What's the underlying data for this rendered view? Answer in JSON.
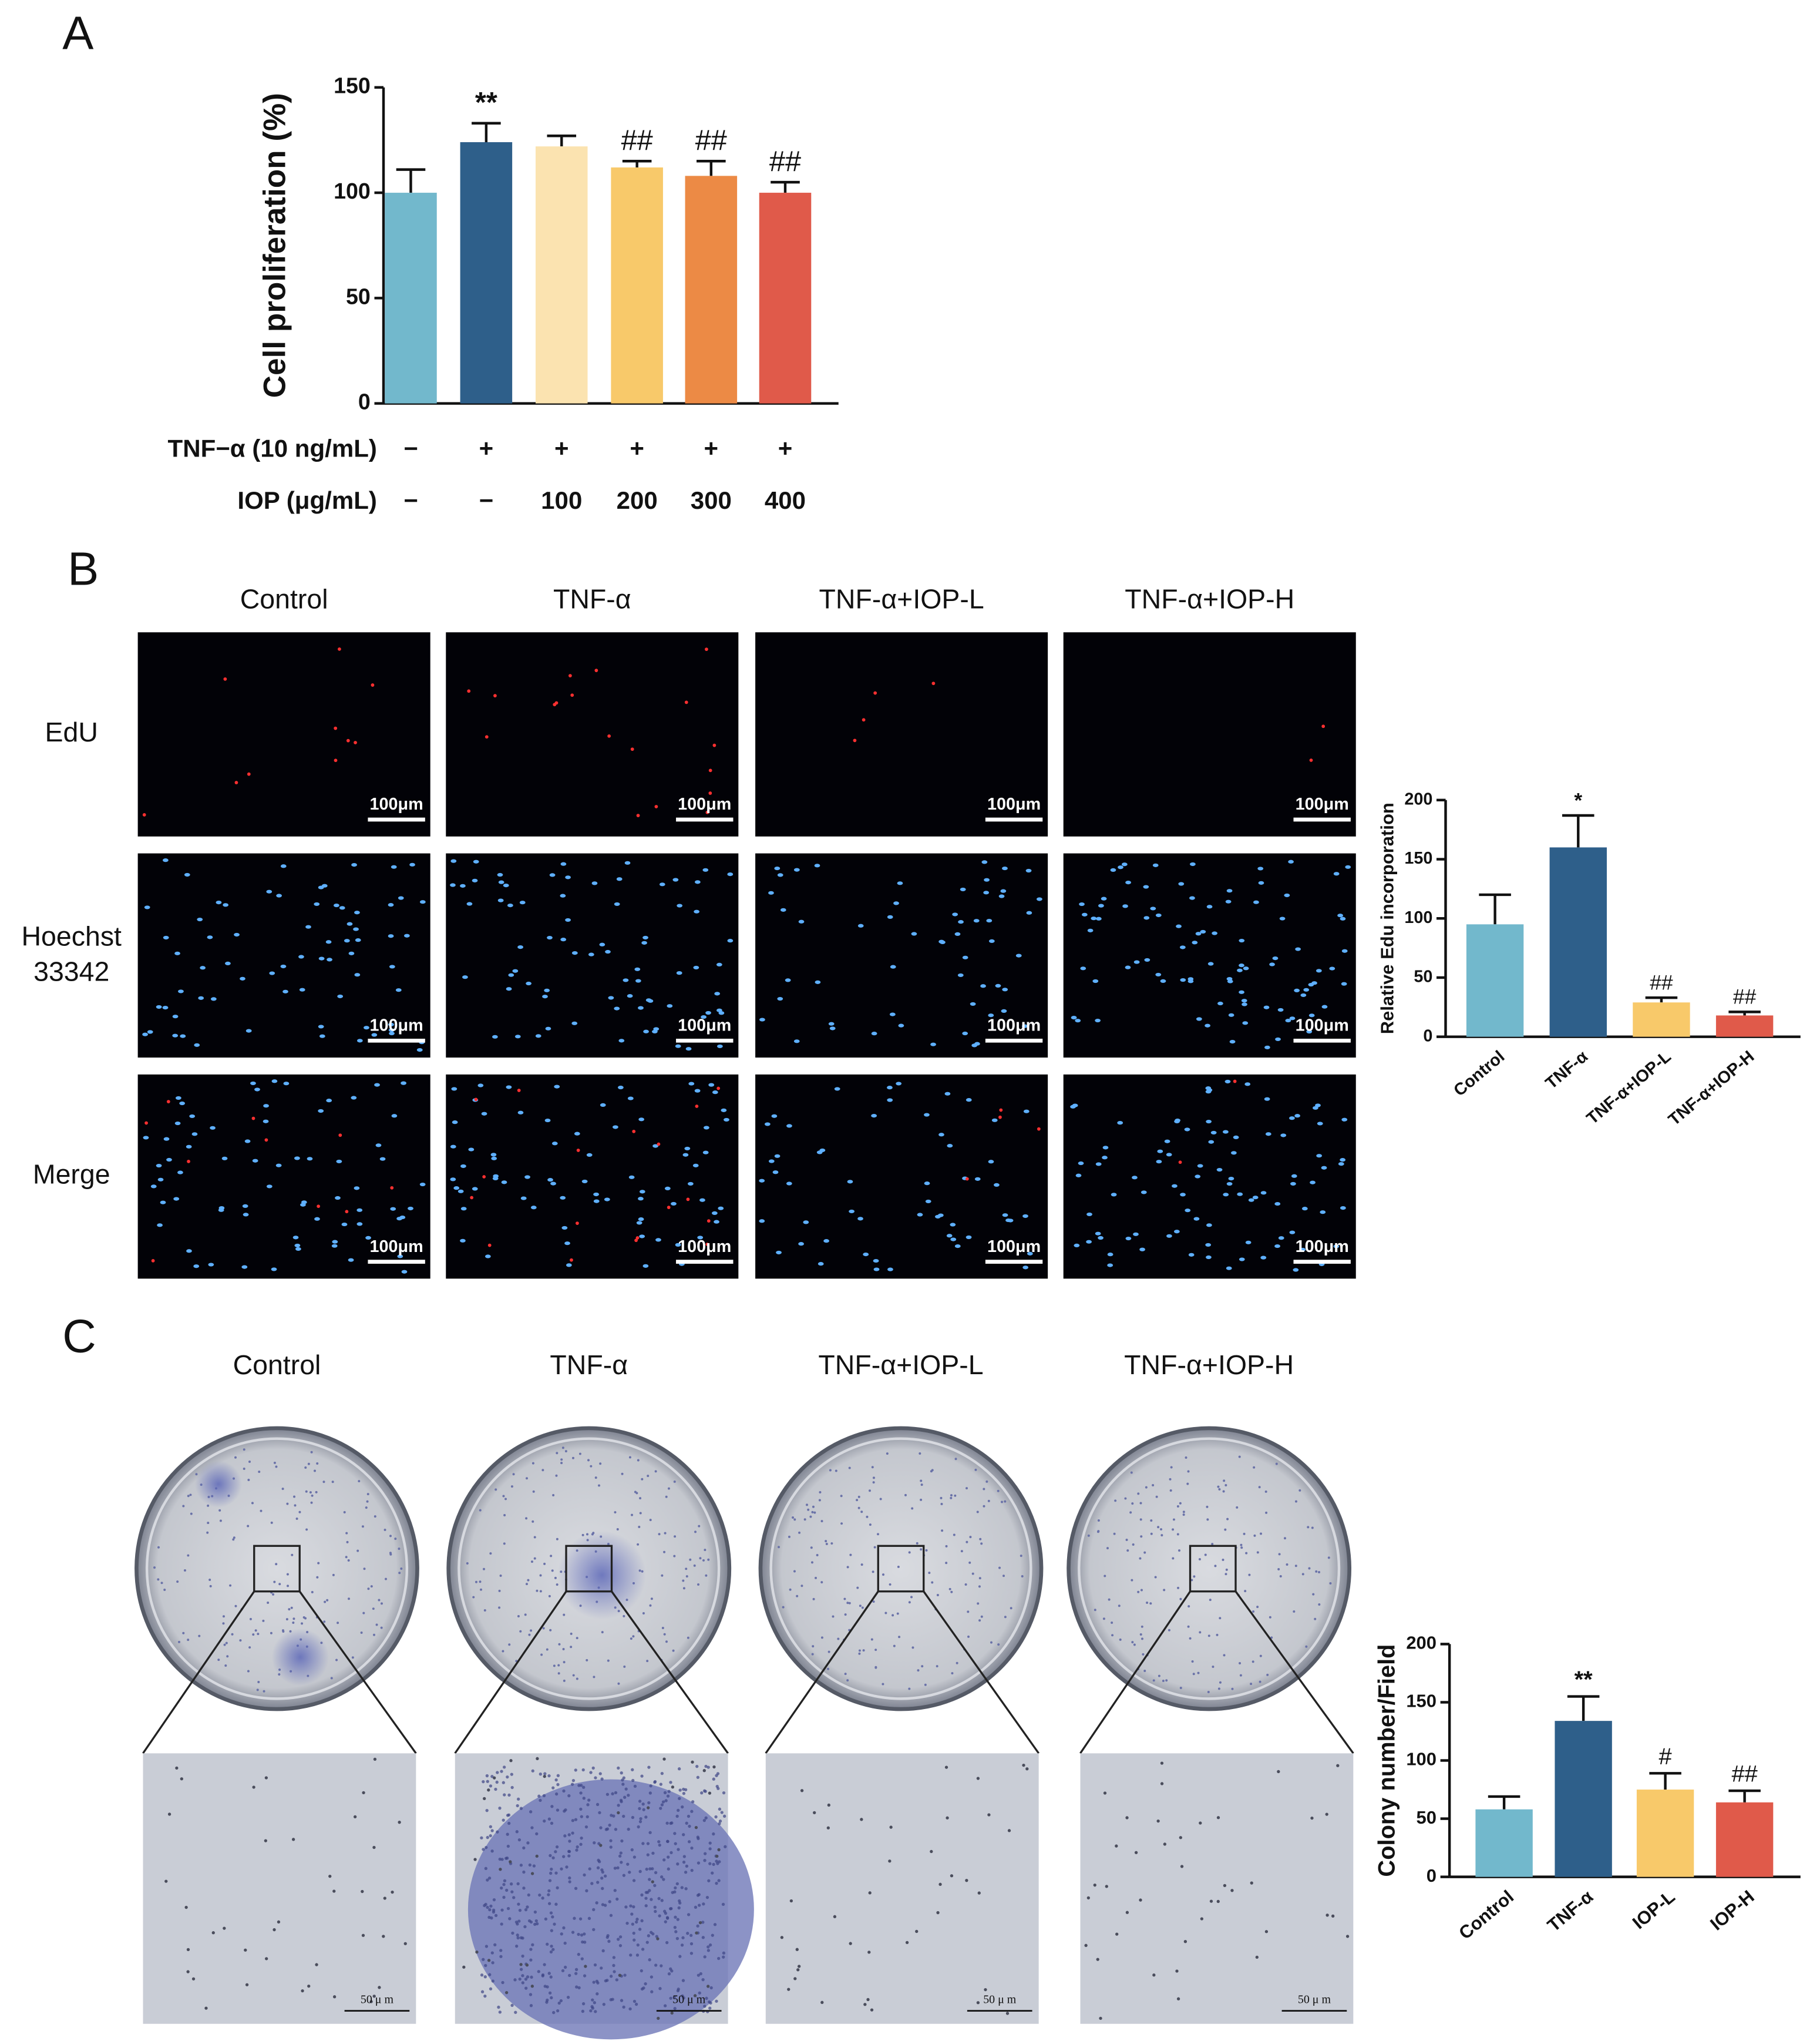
{
  "panel_labels": [
    "A",
    "B",
    "C"
  ],
  "chart_data": [
    {
      "type": "bar",
      "ylabel": "Cell proliferation (%)",
      "values": [
        100,
        124,
        122,
        112,
        108,
        100
      ],
      "errors": [
        11,
        9,
        5,
        3,
        7,
        5
      ],
      "annotations": [
        null,
        "**",
        null,
        "##",
        "##",
        "##"
      ],
      "colors": [
        "#72b8cc",
        "#2e5f8a",
        "#fbe3b0",
        "#f8c96a",
        "#ec8a45",
        "#e05a4a"
      ],
      "ylim": [
        0,
        150
      ],
      "yticks": [
        0,
        50,
        100,
        150
      ],
      "condition_rows": [
        {
          "label": "TNF−α (10 ng/mL)",
          "values": [
            "−",
            "+",
            "+",
            "+",
            "+",
            "+"
          ]
        },
        {
          "label": "IOP (μg/mL)",
          "values": [
            "−",
            "−",
            "100",
            "200",
            "300",
            "400"
          ]
        }
      ]
    },
    {
      "type": "bar",
      "ylabel": "Relative Edu incorporation",
      "categories": [
        "Control",
        "TNF-α",
        "TNF-α+IOP-L",
        "TNF-α+IOP-H"
      ],
      "values": [
        95,
        160,
        29,
        18
      ],
      "errors": [
        25,
        27,
        4,
        3
      ],
      "annotations": [
        null,
        "*",
        "##",
        "##"
      ],
      "colors": [
        "#72b8cc",
        "#2e5f8a",
        "#f8c96a",
        "#e05a4a"
      ],
      "ylim": [
        0,
        200
      ],
      "yticks": [
        0,
        50,
        100,
        150,
        200
      ]
    },
    {
      "type": "bar",
      "ylabel": "Colony number/Field",
      "categories": [
        "Control",
        "TNF-α",
        "IOP-L",
        "IOP-H"
      ],
      "values": [
        58,
        134,
        75,
        64
      ],
      "errors": [
        11,
        21,
        14,
        10
      ],
      "annotations": [
        null,
        "**",
        "#",
        "##"
      ],
      "colors": [
        "#72b8cc",
        "#2e5f8a",
        "#f8c96a",
        "#e05a4a"
      ],
      "ylim": [
        0,
        200
      ],
      "yticks": [
        0,
        50,
        100,
        150,
        200
      ]
    }
  ],
  "edu_panel": {
    "columns": [
      "Control",
      "TNF-α",
      "TNF-α+IOP-L",
      "TNF-α+IOP-H"
    ],
    "rows": [
      [
        "EdU"
      ],
      [
        "Hoechst",
        "33342"
      ],
      [
        "Merge"
      ]
    ],
    "scale_bar": "100μm"
  },
  "colony_panel": {
    "columns": [
      "Control",
      "TNF-α",
      "TNF-α+IOP-L",
      "TNF-α+IOP-H"
    ],
    "scale_bar": "50 μ m"
  }
}
